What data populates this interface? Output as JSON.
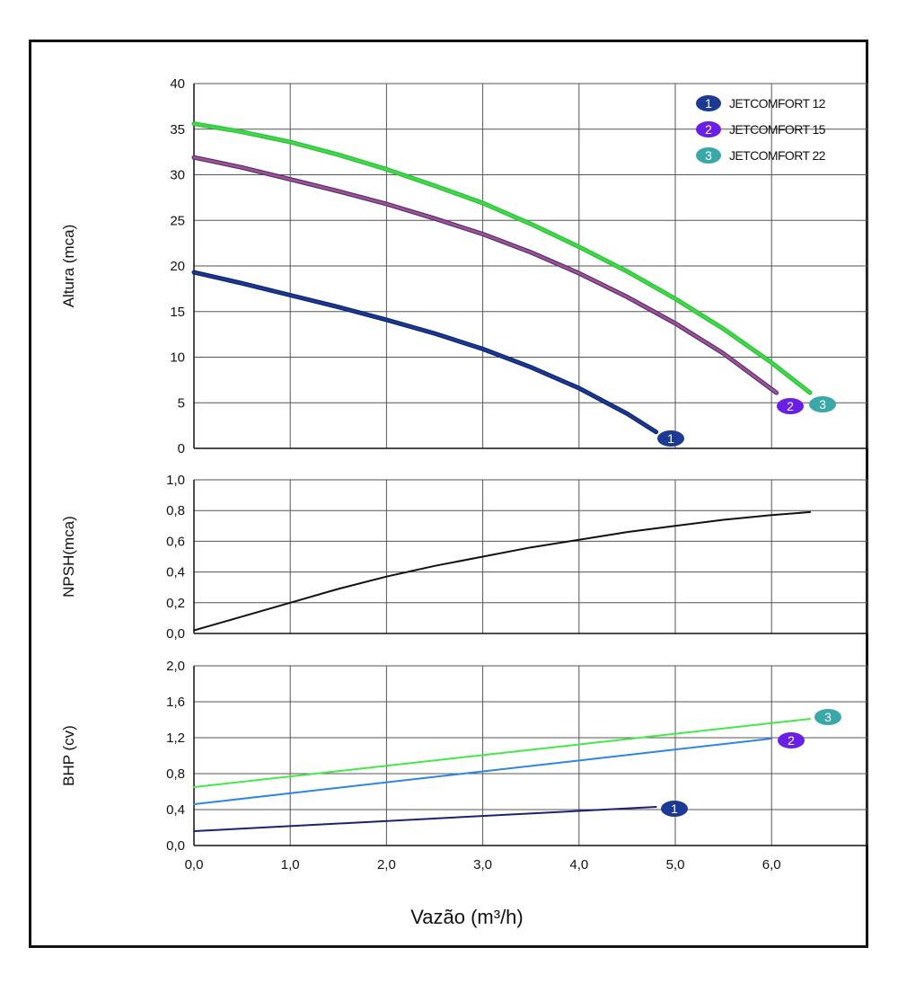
{
  "chart_data": [
    {
      "type": "line",
      "name": "head",
      "ylabel": "Altura (mca)",
      "xlim": [
        0,
        7
      ],
      "ylim": [
        0,
        40
      ],
      "yticks": [
        "0",
        "5",
        "10",
        "15",
        "20",
        "25",
        "30",
        "35",
        "40"
      ],
      "grid": true,
      "legend_position": "top-right",
      "legend": [
        "JETCOMFORT 12",
        "JETCOMFORT 15",
        "JETCOMFORT 22"
      ],
      "series": [
        {
          "name": "JETCOMFORT 12",
          "badge": "1",
          "color": "#1c3a94",
          "badge_color": "#1c3a94",
          "x": [
            0,
            0.5,
            1,
            1.5,
            2,
            2.5,
            3,
            3.5,
            4,
            4.5,
            4.8
          ],
          "y": [
            19.3,
            18.1,
            16.8,
            15.5,
            14.1,
            12.6,
            10.9,
            8.9,
            6.6,
            3.8,
            1.8
          ]
        },
        {
          "name": "JETCOMFORT 15",
          "badge": "2",
          "color": "#8a5aa8",
          "badge_color": "#6a1fe6",
          "x": [
            0,
            0.5,
            1,
            1.5,
            2,
            2.5,
            3,
            3.5,
            4,
            4.5,
            5,
            5.5,
            6.05
          ],
          "y": [
            31.9,
            30.8,
            29.5,
            28.2,
            26.8,
            25.2,
            23.5,
            21.5,
            19.2,
            16.6,
            13.7,
            10.4,
            6.1
          ]
        },
        {
          "name": "JETCOMFORT 22",
          "badge": "3",
          "color": "#3fd94a",
          "badge_color": "#3aa8a8",
          "x": [
            0,
            0.5,
            1,
            1.5,
            2,
            2.5,
            3,
            3.5,
            4,
            4.5,
            5,
            5.5,
            6,
            6.4
          ],
          "y": [
            35.6,
            34.7,
            33.6,
            32.2,
            30.6,
            28.8,
            26.9,
            24.6,
            22.1,
            19.4,
            16.4,
            13.1,
            9.4,
            6.1
          ]
        }
      ]
    },
    {
      "type": "line",
      "name": "npsh",
      "ylabel": "NPSH(mca)",
      "xlim": [
        0,
        7
      ],
      "ylim": [
        0,
        1.0
      ],
      "yticks": [
        "0,0",
        "0,2",
        "0,4",
        "0,6",
        "0,8",
        "1,0"
      ],
      "grid": true,
      "series": [
        {
          "color": "#111111",
          "x": [
            0,
            0.5,
            1,
            1.5,
            2,
            2.5,
            3,
            3.5,
            4,
            4.5,
            5,
            5.5,
            6,
            6.4
          ],
          "y": [
            0.02,
            0.11,
            0.2,
            0.29,
            0.37,
            0.44,
            0.5,
            0.56,
            0.61,
            0.66,
            0.7,
            0.74,
            0.77,
            0.79
          ]
        }
      ]
    },
    {
      "type": "line",
      "name": "bhp",
      "ylabel": "BHP (cv)",
      "xlabel": "Vazão (m³/h)",
      "xlim": [
        0,
        7
      ],
      "ylim": [
        0,
        2.0
      ],
      "yticks": [
        "0,0",
        "0,4",
        "0,8",
        "1,2",
        "1,6",
        "2,0"
      ],
      "xticks": [
        "0,0",
        "1,0",
        "2,0",
        "3,0",
        "4,0",
        "5,0",
        "6,0"
      ],
      "grid": true,
      "series": [
        {
          "name": "JETCOMFORT 12",
          "badge": "1",
          "color": "#1a2370",
          "badge_color": "#1c3a94",
          "x": [
            0,
            4.8
          ],
          "y": [
            0.16,
            0.43
          ]
        },
        {
          "name": "JETCOMFORT 15",
          "badge": "2",
          "color": "#2f86e0",
          "badge_color": "#6a1fe6",
          "x": [
            0,
            6.0
          ],
          "y": [
            0.46,
            1.19
          ]
        },
        {
          "name": "JETCOMFORT 22",
          "badge": "3",
          "color": "#44e84a",
          "badge_color": "#3aa8a8",
          "x": [
            0,
            6.4
          ],
          "y": [
            0.65,
            1.41
          ]
        }
      ]
    }
  ]
}
